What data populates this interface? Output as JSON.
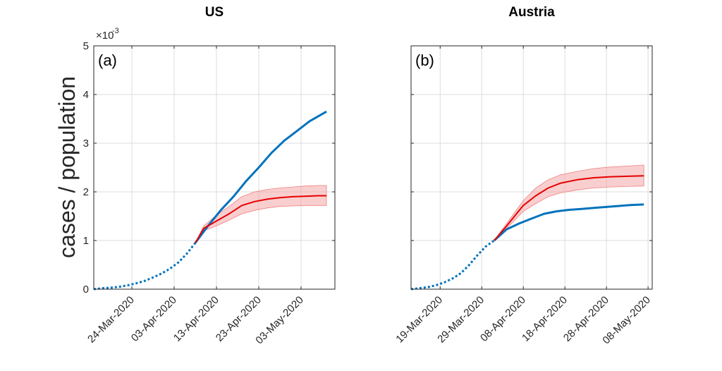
{
  "figure": {
    "ylabel": "cases / population",
    "y_exponent_base": "×10",
    "y_exponent_power": "-3"
  },
  "chart_data": [
    {
      "type": "line",
      "title": "US",
      "panel_label": "(a)",
      "ylim": [
        0,
        5
      ],
      "yticks": [
        "0",
        "1",
        "2",
        "3",
        "4",
        "5"
      ],
      "xlim": [
        "2020-03-15",
        "2020-05-11"
      ],
      "xticks": [
        "24-Mar-2020",
        "03-Apr-2020",
        "13-Apr-2020",
        "23-Apr-2020",
        "03-May-2020"
      ],
      "tick_dates": [
        "2020-03-24",
        "2020-04-03",
        "2020-04-13",
        "2020-04-23",
        "2020-05-03"
      ],
      "grid": true,
      "series": [
        {
          "style": "dotted",
          "color": "#0072bd",
          "x": [
            "2020-03-15",
            "2020-03-17",
            "2020-03-19",
            "2020-03-21",
            "2020-03-23",
            "2020-03-25",
            "2020-03-27",
            "2020-03-29",
            "2020-03-31",
            "2020-04-02",
            "2020-04-04",
            "2020-04-06",
            "2020-04-08"
          ],
          "y": [
            0.0,
            0.02,
            0.03,
            0.05,
            0.08,
            0.12,
            0.17,
            0.24,
            0.32,
            0.42,
            0.55,
            0.73,
            0.95
          ]
        },
        {
          "style": "solid",
          "color": "#0072bd",
          "x": [
            "2020-04-08",
            "2020-04-11",
            "2020-04-14",
            "2020-04-17",
            "2020-04-20",
            "2020-04-23",
            "2020-04-26",
            "2020-04-29",
            "2020-05-02",
            "2020-05-05",
            "2020-05-07",
            "2020-05-09"
          ],
          "y": [
            0.95,
            1.3,
            1.62,
            1.9,
            2.22,
            2.5,
            2.8,
            3.05,
            3.25,
            3.45,
            3.55,
            3.65
          ]
        },
        {
          "style": "solid",
          "color": "#e60000",
          "x": [
            "2020-04-08",
            "2020-04-10",
            "2020-04-13",
            "2020-04-16",
            "2020-04-19",
            "2020-04-22",
            "2020-04-25",
            "2020-04-28",
            "2020-05-01",
            "2020-05-04",
            "2020-05-07",
            "2020-05-09"
          ],
          "y": [
            0.95,
            1.25,
            1.4,
            1.55,
            1.72,
            1.8,
            1.85,
            1.88,
            1.9,
            1.91,
            1.92,
            1.92
          ],
          "band_low": [
            0.95,
            1.2,
            1.3,
            1.42,
            1.55,
            1.62,
            1.67,
            1.7,
            1.71,
            1.72,
            1.72,
            1.72
          ],
          "band_high": [
            0.95,
            1.3,
            1.52,
            1.7,
            1.9,
            2.0,
            2.05,
            2.08,
            2.1,
            2.12,
            2.13,
            2.13
          ]
        }
      ]
    },
    {
      "type": "line",
      "title": "Austria",
      "panel_label": "(b)",
      "ylim": [
        0,
        5
      ],
      "yticks": [
        "0",
        "1",
        "2",
        "3",
        "4",
        "5"
      ],
      "xlim": [
        "2020-03-12",
        "2020-05-09"
      ],
      "xticks": [
        "19-Mar-2020",
        "29-Mar-2020",
        "08-Apr-2020",
        "18-Apr-2020",
        "28-Apr-2020",
        "08-May-2020"
      ],
      "tick_dates": [
        "2020-03-19",
        "2020-03-29",
        "2020-04-08",
        "2020-04-18",
        "2020-04-28",
        "2020-05-08"
      ],
      "grid": true,
      "series": [
        {
          "style": "dotted",
          "color": "#0072bd",
          "x": [
            "2020-03-12",
            "2020-03-14",
            "2020-03-16",
            "2020-03-18",
            "2020-03-20",
            "2020-03-22",
            "2020-03-24",
            "2020-03-26",
            "2020-03-28",
            "2020-03-30",
            "2020-04-01"
          ],
          "y": [
            0.0,
            0.02,
            0.04,
            0.08,
            0.14,
            0.22,
            0.33,
            0.5,
            0.7,
            0.88,
            1.0
          ]
        },
        {
          "style": "solid",
          "color": "#0072bd",
          "x": [
            "2020-04-01",
            "2020-04-04",
            "2020-04-07",
            "2020-04-10",
            "2020-04-13",
            "2020-04-16",
            "2020-04-19",
            "2020-04-22",
            "2020-04-25",
            "2020-04-28",
            "2020-05-01",
            "2020-05-04",
            "2020-05-07"
          ],
          "y": [
            1.0,
            1.23,
            1.35,
            1.45,
            1.55,
            1.6,
            1.63,
            1.65,
            1.67,
            1.69,
            1.71,
            1.73,
            1.74
          ]
        },
        {
          "style": "solid",
          "color": "#e60000",
          "x": [
            "2020-04-01",
            "2020-04-04",
            "2020-04-08",
            "2020-04-11",
            "2020-04-14",
            "2020-04-17",
            "2020-04-21",
            "2020-04-25",
            "2020-04-29",
            "2020-05-03",
            "2020-05-07"
          ],
          "y": [
            1.0,
            1.3,
            1.72,
            1.92,
            2.08,
            2.18,
            2.25,
            2.29,
            2.31,
            2.32,
            2.33
          ],
          "band_low": [
            1.0,
            1.25,
            1.6,
            1.76,
            1.9,
            1.98,
            2.04,
            2.08,
            2.1,
            2.11,
            2.12
          ],
          "band_high": [
            1.0,
            1.35,
            1.82,
            2.08,
            2.25,
            2.35,
            2.42,
            2.48,
            2.51,
            2.53,
            2.55
          ]
        }
      ]
    }
  ]
}
